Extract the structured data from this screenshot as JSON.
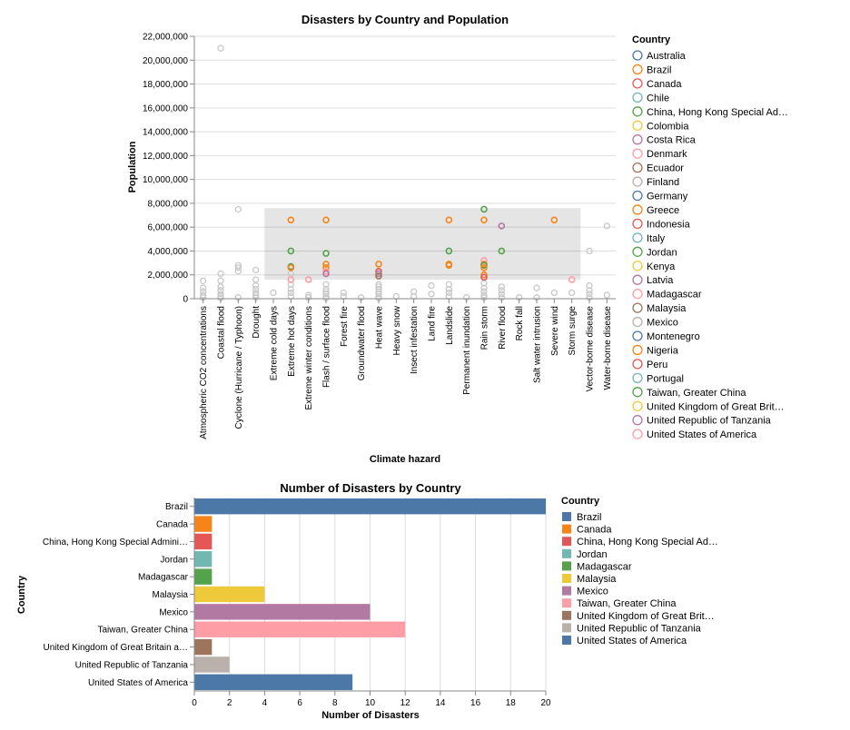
{
  "scatter": {
    "chart_data": {
      "type": "scatter",
      "title": "Disasters by Country and Population",
      "xlabel": "Climate hazard",
      "ylabel": "Population",
      "categories": [
        "Atmospheric CO2 concentrations",
        "Coastal flood",
        "Cyclone (Hurricane / Typhoon)",
        "Drought",
        "Extreme cold days",
        "Extreme hot days",
        "Extreme winter conditions",
        "Flash / surface flood",
        "Forest fire",
        "Groundwater flood",
        "Heat wave",
        "Heavy snow",
        "Insect infestation",
        "Land fire",
        "Landslide",
        "Permanent inundation",
        "Rain storm",
        "River flood",
        "Rock fall",
        "Salt water intrusion",
        "Severe wind",
        "Storm surge",
        "Vector-borne disease",
        "Water-borne disease"
      ],
      "ylim": [
        0,
        22000000
      ],
      "yticks": [
        0,
        2000000,
        4000000,
        6000000,
        8000000,
        10000000,
        12000000,
        14000000,
        16000000,
        18000000,
        20000000,
        22000000
      ],
      "ytick_labels": [
        "0",
        "2,000,000",
        "4,000,000",
        "6,000,000",
        "8,000,000",
        "10,000,000",
        "12,000,000",
        "14,000,000",
        "16,000,000",
        "18,000,000",
        "20,000,000",
        "22,000,000"
      ],
      "selection": {
        "x_from": "Extreme cold days",
        "x_to": "Storm surge",
        "y_from": 1600000,
        "y_to": 7600000
      },
      "points_gray": [
        [
          "Atmospheric CO2 concentrations",
          1500000
        ],
        [
          "Atmospheric CO2 concentrations",
          900000
        ],
        [
          "Atmospheric CO2 concentrations",
          600000
        ],
        [
          "Atmospheric CO2 concentrations",
          300000
        ],
        [
          "Atmospheric CO2 concentrations",
          100000
        ],
        [
          "Coastal flood",
          21000000
        ],
        [
          "Coastal flood",
          2100000
        ],
        [
          "Coastal flood",
          1500000
        ],
        [
          "Coastal flood",
          1000000
        ],
        [
          "Coastal flood",
          700000
        ],
        [
          "Coastal flood",
          400000
        ],
        [
          "Coastal flood",
          200000
        ],
        [
          "Coastal flood",
          50000
        ],
        [
          "Cyclone (Hurricane / Typhoon)",
          7500000
        ],
        [
          "Cyclone (Hurricane / Typhoon)",
          2800000
        ],
        [
          "Cyclone (Hurricane / Typhoon)",
          2600000
        ],
        [
          "Cyclone (Hurricane / Typhoon)",
          2300000
        ],
        [
          "Cyclone (Hurricane / Typhoon)",
          100000
        ],
        [
          "Drought",
          2400000
        ],
        [
          "Drought",
          1600000
        ],
        [
          "Drought",
          1100000
        ],
        [
          "Drought",
          800000
        ],
        [
          "Drought",
          500000
        ],
        [
          "Drought",
          300000
        ],
        [
          "Drought",
          100000
        ],
        [
          "Extreme cold days",
          500000
        ],
        [
          "Extreme hot days",
          2100000
        ],
        [
          "Extreme hot days",
          1200000
        ],
        [
          "Extreme hot days",
          800000
        ],
        [
          "Extreme hot days",
          500000
        ],
        [
          "Extreme hot days",
          200000
        ],
        [
          "Extreme winter conditions",
          300000
        ],
        [
          "Extreme winter conditions",
          100000
        ],
        [
          "Flash / surface flood",
          1200000
        ],
        [
          "Flash / surface flood",
          800000
        ],
        [
          "Flash / surface flood",
          600000
        ],
        [
          "Flash / surface flood",
          400000
        ],
        [
          "Flash / surface flood",
          200000
        ],
        [
          "Flash / surface flood",
          50000
        ],
        [
          "Forest fire",
          500000
        ],
        [
          "Forest fire",
          200000
        ],
        [
          "Groundwater flood",
          100000
        ],
        [
          "Heat wave",
          1200000
        ],
        [
          "Heat wave",
          1000000
        ],
        [
          "Heat wave",
          800000
        ],
        [
          "Heat wave",
          600000
        ],
        [
          "Heat wave",
          400000
        ],
        [
          "Heat wave",
          200000
        ],
        [
          "Heat wave",
          50000
        ],
        [
          "Heavy snow",
          200000
        ],
        [
          "Insect infestation",
          600000
        ],
        [
          "Insect infestation",
          200000
        ],
        [
          "Land fire",
          1100000
        ],
        [
          "Land fire",
          400000
        ],
        [
          "Landslide",
          1200000
        ],
        [
          "Landslide",
          800000
        ],
        [
          "Landslide",
          500000
        ],
        [
          "Landslide",
          200000
        ],
        [
          "Permanent inundation",
          100000
        ],
        [
          "Rain storm",
          1300000
        ],
        [
          "Rain storm",
          900000
        ],
        [
          "Rain storm",
          600000
        ],
        [
          "Rain storm",
          300000
        ],
        [
          "Rain storm",
          100000
        ],
        [
          "River flood",
          1000000
        ],
        [
          "River flood",
          700000
        ],
        [
          "River flood",
          400000
        ],
        [
          "River flood",
          100000
        ],
        [
          "Rock fall",
          100000
        ],
        [
          "Salt water intrusion",
          900000
        ],
        [
          "Salt water intrusion",
          100000
        ],
        [
          "Severe wind",
          500000
        ],
        [
          "Storm surge",
          500000
        ],
        [
          "Vector-borne disease",
          4000000
        ],
        [
          "Vector-borne disease",
          1100000
        ],
        [
          "Vector-borne disease",
          700000
        ],
        [
          "Vector-borne disease",
          400000
        ],
        [
          "Vector-borne disease",
          100000
        ],
        [
          "Water-borne disease",
          6100000
        ],
        [
          "Water-borne disease",
          300000
        ]
      ],
      "points_highlight": [
        [
          "Extreme hot days",
          6600000,
          "Brazil"
        ],
        [
          "Extreme hot days",
          4000000,
          "Taiwan, Greater China"
        ],
        [
          "Extreme hot days",
          2700000,
          "Taiwan, Greater China"
        ],
        [
          "Extreme hot days",
          2600000,
          "Brazil"
        ],
        [
          "Extreme hot days",
          1600000,
          "Denmark"
        ],
        [
          "Extreme winter conditions",
          1600000,
          "Denmark"
        ],
        [
          "Flash / surface flood",
          6600000,
          "Brazil"
        ],
        [
          "Flash / surface flood",
          3800000,
          "Taiwan, Greater China"
        ],
        [
          "Flash / surface flood",
          2900000,
          "Brazil"
        ],
        [
          "Flash / surface flood",
          2600000,
          "Brazil"
        ],
        [
          "Flash / surface flood",
          2300000,
          "Denmark"
        ],
        [
          "Flash / surface flood",
          2100000,
          "Costa Rica"
        ],
        [
          "Heat wave",
          2900000,
          "Brazil"
        ],
        [
          "Heat wave",
          2300000,
          "Indonesia"
        ],
        [
          "Heat wave",
          2100000,
          "Costa Rica"
        ],
        [
          "Heat wave",
          1900000,
          "Ecuador"
        ],
        [
          "Landslide",
          6600000,
          "Brazil"
        ],
        [
          "Landslide",
          4000000,
          "Taiwan, Greater China"
        ],
        [
          "Landslide",
          2900000,
          "Brazil"
        ],
        [
          "Landslide",
          2800000,
          "Brazil"
        ],
        [
          "Rain storm",
          7500000,
          "Taiwan, Greater China"
        ],
        [
          "Rain storm",
          6600000,
          "Brazil"
        ],
        [
          "Rain storm",
          3200000,
          "Denmark"
        ],
        [
          "Rain storm",
          2900000,
          "Brazil"
        ],
        [
          "Rain storm",
          2800000,
          "Taiwan, Greater China"
        ],
        [
          "Rain storm",
          2600000,
          "Brazil"
        ],
        [
          "Rain storm",
          2000000,
          "Brazil"
        ],
        [
          "Rain storm",
          1800000,
          "Indonesia"
        ],
        [
          "River flood",
          6100000,
          "Costa Rica"
        ],
        [
          "River flood",
          4000000,
          "Taiwan, Greater China"
        ],
        [
          "Severe wind",
          6600000,
          "Brazil"
        ],
        [
          "Storm surge",
          1600000,
          "Denmark"
        ]
      ],
      "legend": {
        "title": "Country",
        "position": "right",
        "entries": [
          {
            "name": "Australia",
            "color": "#4c78a8"
          },
          {
            "name": "Brazil",
            "color": "#f58518"
          },
          {
            "name": "Canada",
            "color": "#e45756"
          },
          {
            "name": "Chile",
            "color": "#72b7b2"
          },
          {
            "name": "China, Hong Kong Special Ad…",
            "color": "#54a24b"
          },
          {
            "name": "Colombia",
            "color": "#eeca3b"
          },
          {
            "name": "Costa Rica",
            "color": "#b279a2"
          },
          {
            "name": "Denmark",
            "color": "#ff9da6"
          },
          {
            "name": "Ecuador",
            "color": "#9d755d"
          },
          {
            "name": "Finland",
            "color": "#bab0ac"
          },
          {
            "name": "Germany",
            "color": "#4c78a8"
          },
          {
            "name": "Greece",
            "color": "#f58518"
          },
          {
            "name": "Indonesia",
            "color": "#e45756"
          },
          {
            "name": "Italy",
            "color": "#72b7b2"
          },
          {
            "name": "Jordan",
            "color": "#54a24b"
          },
          {
            "name": "Kenya",
            "color": "#eeca3b"
          },
          {
            "name": "Latvia",
            "color": "#b279a2"
          },
          {
            "name": "Madagascar",
            "color": "#ff9da6"
          },
          {
            "name": "Malaysia",
            "color": "#9d755d"
          },
          {
            "name": "Mexico",
            "color": "#bab0ac"
          },
          {
            "name": "Montenegro",
            "color": "#4c78a8"
          },
          {
            "name": "Nigeria",
            "color": "#f58518"
          },
          {
            "name": "Peru",
            "color": "#e45756"
          },
          {
            "name": "Portugal",
            "color": "#72b7b2"
          },
          {
            "name": "Taiwan, Greater China",
            "color": "#54a24b"
          },
          {
            "name": "United Kingdom of Great Brit…",
            "color": "#eeca3b"
          },
          {
            "name": "United Republic of Tanzania",
            "color": "#b279a2"
          },
          {
            "name": "United States of America",
            "color": "#ff9da6"
          }
        ]
      }
    }
  },
  "bars": {
    "chart_data": {
      "type": "bar",
      "orientation": "horizontal",
      "title": "Number of Disasters by Country",
      "xlabel": "Number of Disasters",
      "ylabel": "Country",
      "xlim": [
        0,
        20
      ],
      "xticks": [
        0,
        2,
        4,
        6,
        8,
        10,
        12,
        14,
        16,
        18,
        20
      ],
      "xtick_labels": [
        "0",
        "2",
        "4",
        "6",
        "8",
        "10",
        "12",
        "14",
        "16",
        "18",
        "20"
      ],
      "categories": [
        "Brazil",
        "Canada",
        "China, Hong Kong Special Admini…",
        "Jordan",
        "Madagascar",
        "Malaysia",
        "Mexico",
        "Taiwan, Greater China",
        "United Kingdom of Great Britain a…",
        "United Republic of Tanzania",
        "United States of America"
      ],
      "values": [
        20,
        1,
        1,
        1,
        1,
        4,
        10,
        12,
        1,
        2,
        9
      ],
      "colors": [
        "#4c78a8",
        "#f58518",
        "#e45756",
        "#72b7b2",
        "#54a24b",
        "#eeca3b",
        "#b279a2",
        "#ff9da6",
        "#9d755d",
        "#bab0ac",
        "#4c78a8"
      ],
      "legend": {
        "title": "Country",
        "position": "right",
        "entries": [
          {
            "name": "Brazil",
            "color": "#4c78a8"
          },
          {
            "name": "Canada",
            "color": "#f58518"
          },
          {
            "name": "China, Hong Kong Special Ad…",
            "color": "#e45756"
          },
          {
            "name": "Jordan",
            "color": "#72b7b2"
          },
          {
            "name": "Madagascar",
            "color": "#54a24b"
          },
          {
            "name": "Malaysia",
            "color": "#eeca3b"
          },
          {
            "name": "Mexico",
            "color": "#b279a2"
          },
          {
            "name": "Taiwan, Greater China",
            "color": "#ff9da6"
          },
          {
            "name": "United Kingdom of Great Brit…",
            "color": "#9d755d"
          },
          {
            "name": "United Republic of Tanzania",
            "color": "#bab0ac"
          },
          {
            "name": "United States of America",
            "color": "#4c78a8"
          }
        ]
      }
    }
  }
}
